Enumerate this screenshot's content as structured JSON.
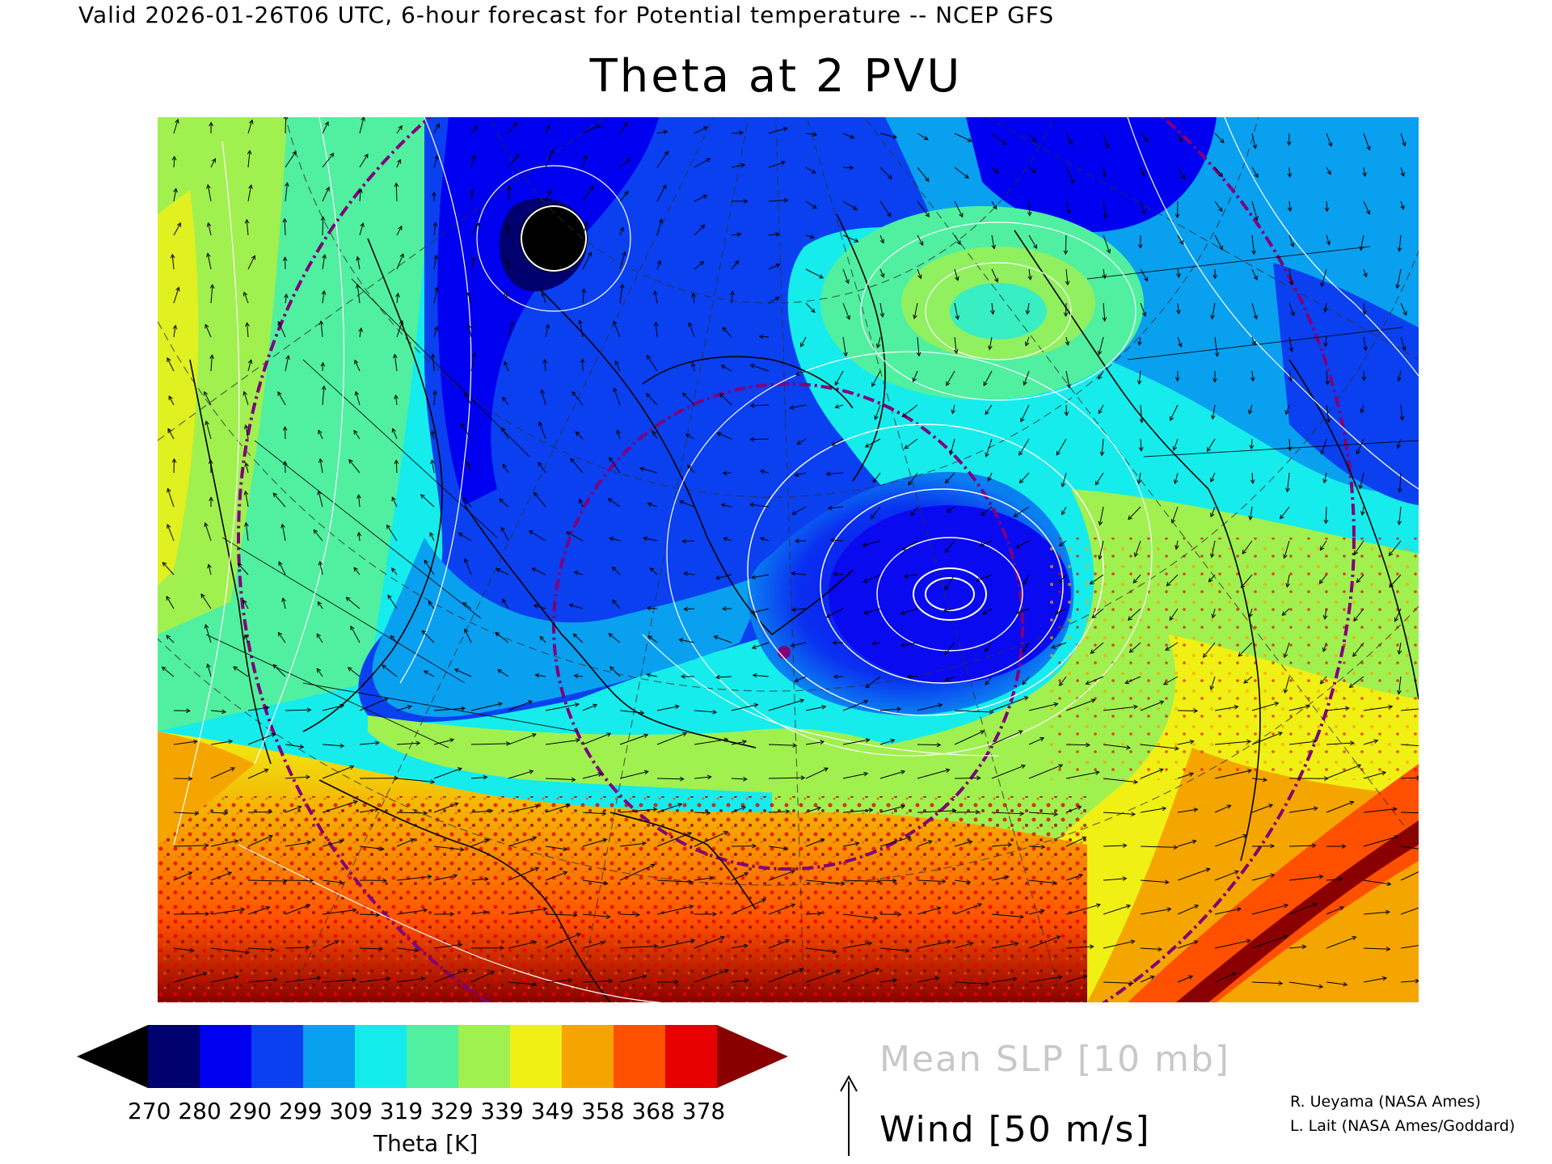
{
  "header": {
    "valid_line": "Valid 2026-01-26T06 UTC, 6-hour forecast for Potential temperature -- NCEP GFS",
    "title": "Theta at 2 PVU"
  },
  "map": {
    "background_colors": {
      "black": "#000000",
      "navy": "#00007a",
      "blue": "#0a0af0",
      "mid_blue": "#0f3cf0",
      "azure": "#0a9ff0",
      "cyan": "#16ecec",
      "aquamarine": "#4ef0a0",
      "lime": "#a0f050",
      "yellow": "#f0f014",
      "orange": "#f5a500",
      "red_orange": "#ff5000",
      "red": "#e80000",
      "dark_red": "#8a0000"
    },
    "overlay_colors": {
      "slp_contours": "#ffffff",
      "coastlines": "#000000",
      "grid": "#404040",
      "boundary": "#80007a"
    }
  },
  "colorbar": {
    "colors": [
      "#000000",
      "#00006e",
      "#0000f0",
      "#0a40f0",
      "#0aa0f0",
      "#14ecec",
      "#50f0a0",
      "#a0f050",
      "#f0f014",
      "#f5a500",
      "#ff5000",
      "#e80000",
      "#8a0000"
    ],
    "ticks_text": "270 280 290 299 309 319 329 339 349 358 368 378",
    "ticks": [
      270,
      280,
      290,
      299,
      309,
      319,
      329,
      339,
      349,
      358,
      368,
      378
    ],
    "label": "Theta [K]"
  },
  "legend": {
    "slp": "Mean SLP [10 mb]",
    "wind": "Wind [50 m/s]"
  },
  "credits": {
    "line1": "R. Ueyama (NASA Ames)",
    "line2": "L. Lait (NASA Ames/Goddard)"
  }
}
